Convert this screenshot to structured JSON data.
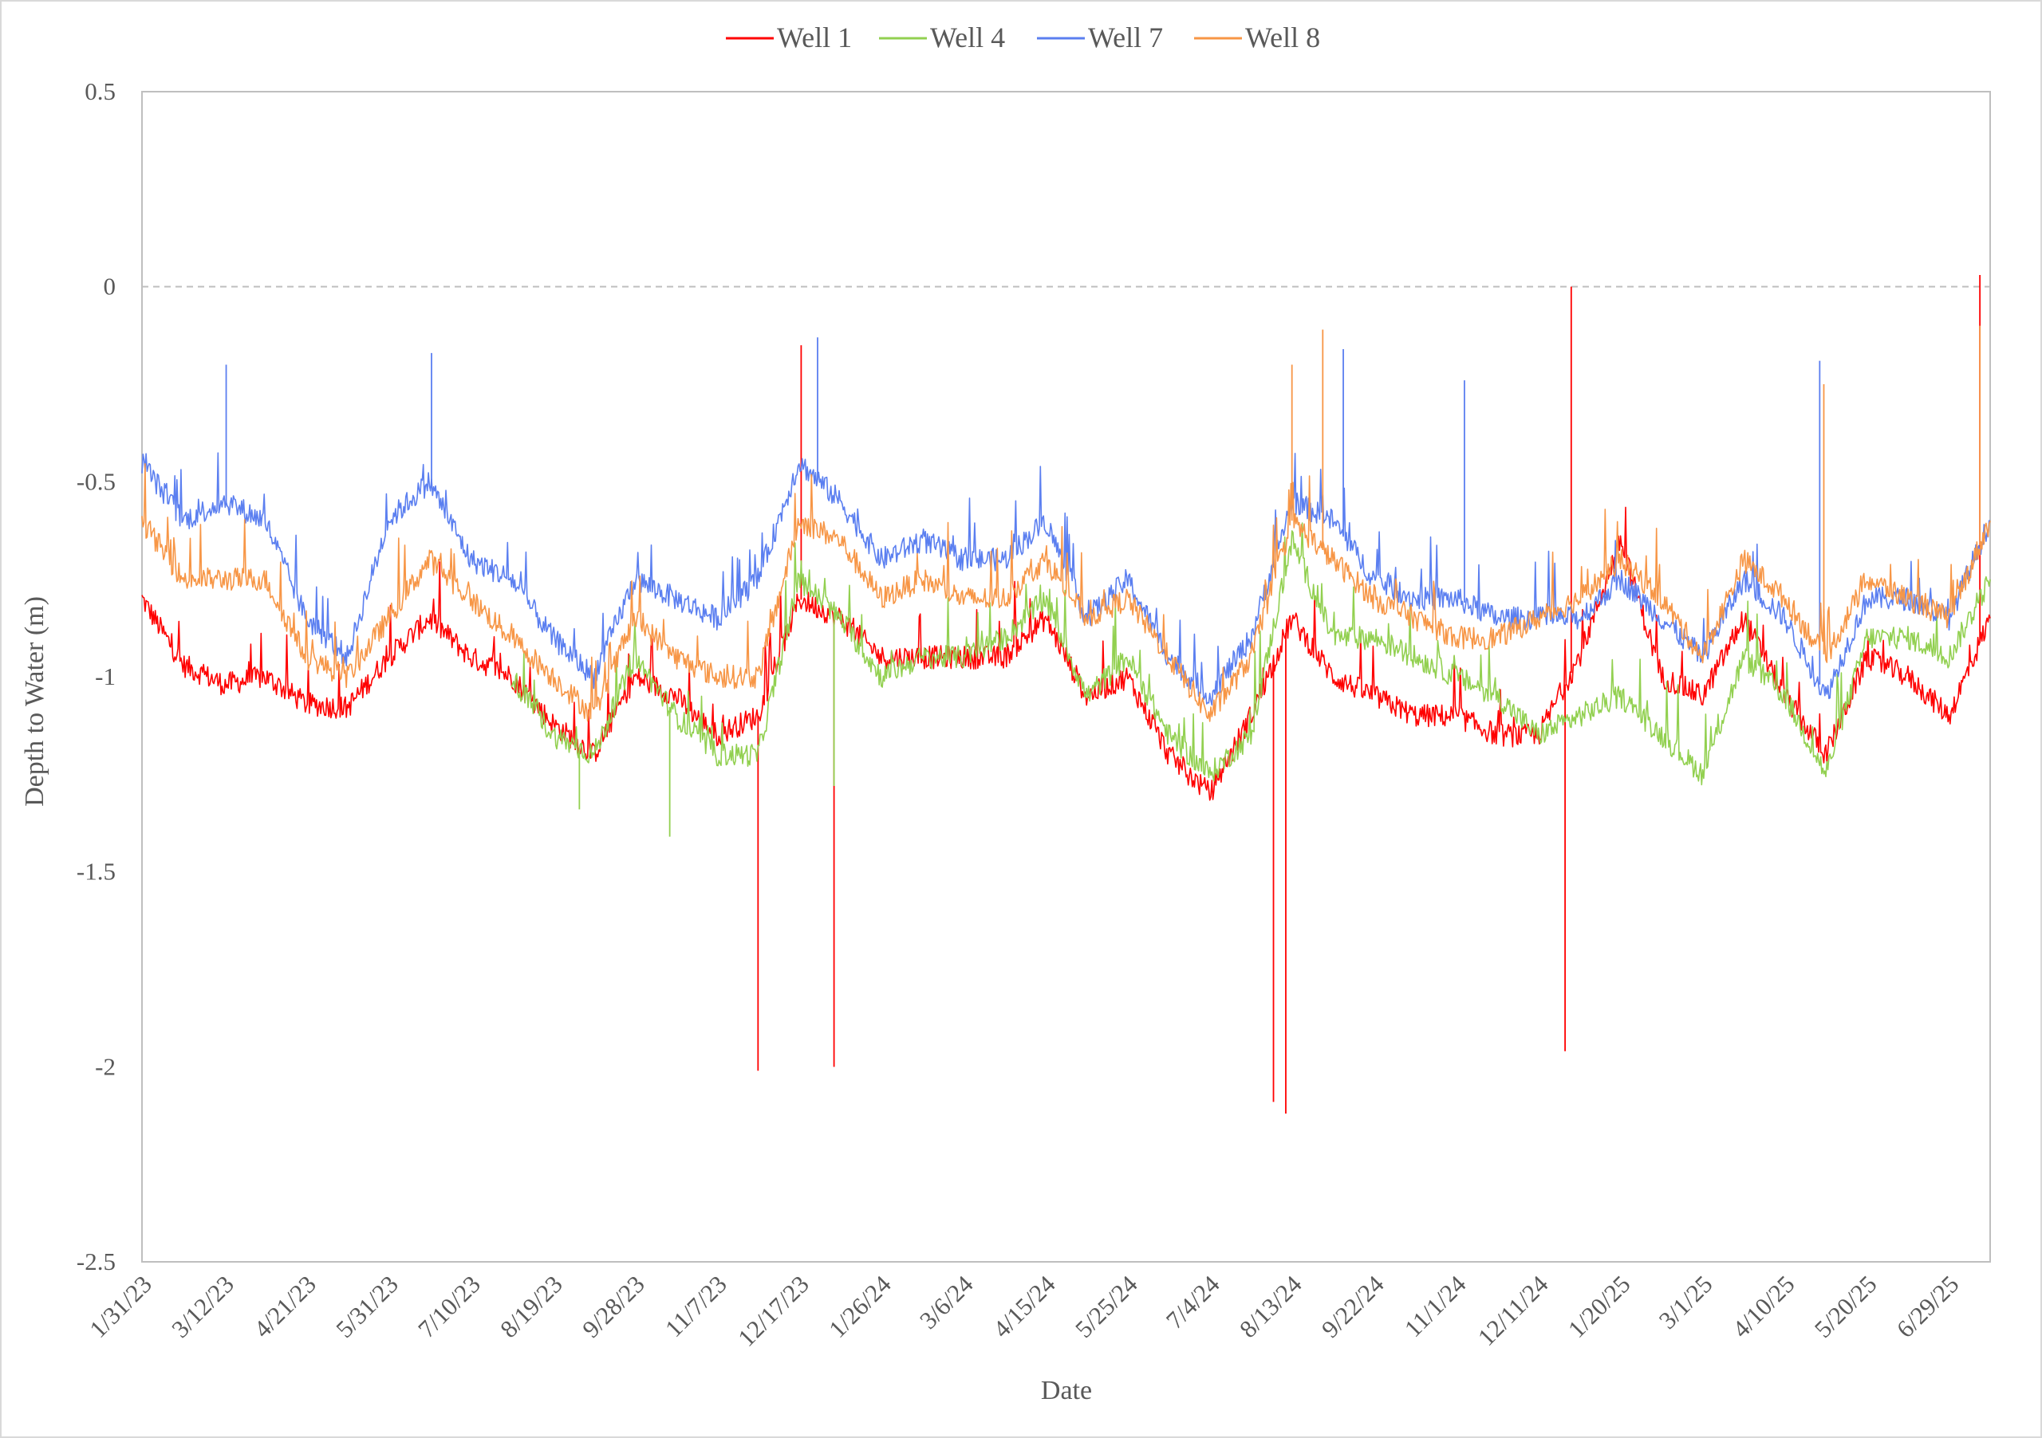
{
  "chart_data": {
    "type": "line",
    "title": "",
    "xlabel": "Date",
    "ylabel": "Depth to Water (m)",
    "ylim": [
      -2.5,
      0.5
    ],
    "yticks": [
      "0.5",
      "0",
      "-0.5",
      "-1",
      "-1.5",
      "-2",
      "-2.5"
    ],
    "ytick_values": [
      0.5,
      0,
      -0.5,
      -1,
      -1.5,
      -2,
      -2.5
    ],
    "x_unit": "days since 1/31/23",
    "xlim": [
      0,
      900
    ],
    "xticks": [
      "1/31/23",
      "3/12/23",
      "4/21/23",
      "5/31/23",
      "7/10/23",
      "8/19/23",
      "9/28/23",
      "11/7/23",
      "12/17/23",
      "1/26/24",
      "3/6/24",
      "4/15/24",
      "5/25/24",
      "7/4/24",
      "8/13/24",
      "9/22/24",
      "11/1/24",
      "12/11/24",
      "1/20/25",
      "3/1/25",
      "4/10/25",
      "5/20/25",
      "6/29/25"
    ],
    "xtick_step_days": 40,
    "gridlines": [
      {
        "y": 0,
        "style": "dashed"
      }
    ],
    "legend_position": "top-center",
    "x": [
      0,
      20,
      40,
      60,
      80,
      100,
      120,
      140,
      160,
      180,
      200,
      220,
      240,
      260,
      280,
      300,
      320,
      340,
      360,
      380,
      400,
      420,
      440,
      460,
      480,
      500,
      520,
      540,
      560,
      580,
      600,
      620,
      640,
      660,
      680,
      700,
      720,
      740,
      760,
      780,
      800,
      820,
      840,
      860,
      880,
      900
    ],
    "series": [
      {
        "name": "Well 1",
        "color": "#ff0000",
        "values": [
          -0.8,
          -0.97,
          -1.02,
          -1.0,
          -1.07,
          -1.08,
          -0.95,
          -0.85,
          -0.95,
          -1.0,
          -1.12,
          -1.2,
          -1.0,
          -1.05,
          -1.15,
          -1.1,
          -0.8,
          -0.85,
          -0.95,
          -0.95,
          -0.95,
          -0.95,
          -0.85,
          -1.05,
          -1.0,
          -1.2,
          -1.3,
          -1.1,
          -0.85,
          -1.0,
          -1.05,
          -1.1,
          -1.1,
          -1.15,
          -1.15,
          -0.95,
          -0.65,
          -1.0,
          -1.05,
          -0.85,
          -1.05,
          -1.2,
          -0.95,
          -1.0,
          -1.1,
          -0.85
        ],
        "spikes": [
          {
            "x": 300,
            "y": -2.01
          },
          {
            "x": 321,
            "y": -0.15
          },
          {
            "x": 337,
            "y": -2.0
          },
          {
            "x": 551,
            "y": -2.09
          },
          {
            "x": 557,
            "y": -2.12
          },
          {
            "x": 693,
            "y": -1.96
          },
          {
            "x": 696,
            "y": 0.0
          },
          {
            "x": 895,
            "y": 0.03
          }
        ]
      },
      {
        "name": "Well 4",
        "color": "#92d050",
        "values": [
          null,
          null,
          null,
          null,
          null,
          null,
          null,
          null,
          null,
          -1.0,
          -1.15,
          -1.2,
          -0.95,
          -1.1,
          -1.2,
          -1.2,
          -0.75,
          -0.85,
          -1.0,
          -0.95,
          -0.95,
          -0.9,
          -0.8,
          -1.05,
          -0.95,
          -1.15,
          -1.25,
          -1.15,
          -0.65,
          -0.9,
          -0.9,
          -0.95,
          -1.0,
          -1.05,
          -1.15,
          -1.1,
          -1.05,
          -1.15,
          -1.25,
          -0.95,
          -1.05,
          -1.25,
          -0.9,
          -0.9,
          -0.95,
          -0.75
        ],
        "spikes": [
          {
            "x": 213,
            "y": -1.34
          },
          {
            "x": 257,
            "y": -1.41
          },
          {
            "x": 337,
            "y": -1.28
          }
        ]
      },
      {
        "name": "Well 7",
        "color": "#5b7ff0",
        "values": [
          -0.45,
          -0.6,
          -0.55,
          -0.6,
          -0.85,
          -0.95,
          -0.6,
          -0.5,
          -0.7,
          -0.75,
          -0.9,
          -1.0,
          -0.75,
          -0.8,
          -0.85,
          -0.75,
          -0.45,
          -0.55,
          -0.7,
          -0.65,
          -0.7,
          -0.7,
          -0.6,
          -0.85,
          -0.75,
          -0.95,
          -1.05,
          -0.9,
          -0.55,
          -0.6,
          -0.75,
          -0.8,
          -0.8,
          -0.85,
          -0.85,
          -0.85,
          -0.75,
          -0.85,
          -0.95,
          -0.75,
          -0.85,
          -1.05,
          -0.8,
          -0.8,
          -0.85,
          -0.6
        ],
        "spikes": [
          {
            "x": 41,
            "y": -0.2
          },
          {
            "x": 141,
            "y": -0.17
          },
          {
            "x": 329,
            "y": -0.13
          },
          {
            "x": 585,
            "y": -0.16
          },
          {
            "x": 644,
            "y": -0.24
          },
          {
            "x": 817,
            "y": -0.19
          }
        ]
      },
      {
        "name": "Well 8",
        "color": "#f79646",
        "values": [
          -0.6,
          -0.75,
          -0.75,
          -0.75,
          -0.95,
          -1.0,
          -0.85,
          -0.7,
          -0.8,
          -0.9,
          -1.0,
          -1.1,
          -0.85,
          -0.95,
          -1.0,
          -1.0,
          -0.6,
          -0.65,
          -0.8,
          -0.75,
          -0.8,
          -0.8,
          -0.7,
          -0.85,
          -0.8,
          -0.95,
          -1.1,
          -0.95,
          -0.6,
          -0.7,
          -0.8,
          -0.85,
          -0.9,
          -0.9,
          -0.85,
          -0.8,
          -0.7,
          -0.8,
          -0.95,
          -0.7,
          -0.8,
          -0.95,
          -0.75,
          -0.8,
          -0.85,
          -0.6
        ],
        "spikes": [
          {
            "x": 560,
            "y": -0.2
          },
          {
            "x": 575,
            "y": -0.11
          },
          {
            "x": 819,
            "y": -0.25
          },
          {
            "x": 895,
            "y": -0.1
          }
        ]
      }
    ]
  }
}
